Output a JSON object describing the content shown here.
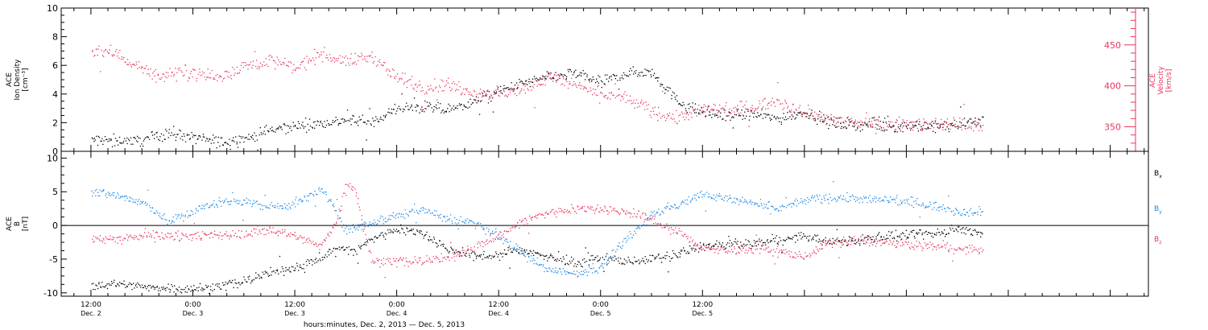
{
  "chart_data": [
    {
      "type": "scatter",
      "panel": "ion-density-velocity",
      "ylabel_lines": [
        "ACE",
        "Ion Density",
        "[cm⁻³]"
      ],
      "ylim": [
        0,
        10
      ],
      "yticks": [
        "0",
        "2",
        "4",
        "6",
        "8",
        "10"
      ],
      "y2label_lines": [
        "ACE",
        "Velocity",
        "[km/s]"
      ],
      "y2lim": [
        320,
        495
      ],
      "y2ticks": [
        "350",
        "400",
        "450"
      ],
      "colors": {
        "density": "#000000",
        "velocity": "#e8365d"
      },
      "series": [
        {
          "name": "",
          "color": "#000000",
          "axis": "left",
          "x_hours": [
            0,
            3,
            6,
            7,
            9,
            12,
            15,
            18,
            21,
            24,
            27,
            30,
            33,
            36,
            39,
            42,
            45,
            48,
            51,
            54,
            57,
            60,
            63,
            66,
            69,
            72,
            75,
            78,
            81,
            84,
            87,
            90,
            93,
            96,
            99,
            102,
            105
          ],
          "values": [
            0.8,
            0.8,
            0.8,
            1.0,
            1.3,
            1.0,
            0.7,
            0.9,
            1.5,
            1.8,
            2.0,
            2.2,
            2.0,
            3.0,
            3.1,
            2.9,
            3.5,
            4.2,
            4.8,
            5.2,
            5.5,
            4.8,
            5.5,
            5.6,
            3.5,
            2.7,
            2.5,
            2.6,
            2.3,
            2.8,
            2.0,
            1.9,
            1.8,
            1.8,
            1.7,
            1.9,
            2.2
          ],
          "spread": 0.35
        },
        {
          "name": "",
          "color": "#e8365d",
          "axis": "right",
          "x_hours": [
            0,
            3,
            6,
            8,
            9,
            12,
            15,
            18,
            21,
            24,
            27,
            30,
            33,
            36,
            39,
            42,
            45,
            48,
            51,
            54,
            57,
            60,
            63,
            66,
            69,
            72,
            75,
            78,
            81,
            84,
            87,
            90,
            93,
            96,
            99,
            102,
            105
          ],
          "values": [
            445,
            440,
            420,
            412,
            415,
            418,
            410,
            425,
            432,
            422,
            440,
            430,
            437,
            410,
            398,
            402,
            392,
            390,
            397,
            412,
            400,
            390,
            385,
            370,
            360,
            372,
            370,
            375,
            382,
            368,
            360,
            355,
            352,
            356,
            352,
            355,
            350
          ],
          "spread": 7
        }
      ]
    },
    {
      "type": "scatter",
      "panel": "magnetic-field",
      "ylabel_lines": [
        "ACE",
        "B",
        "[nT]"
      ],
      "ylim": [
        -10.5,
        11
      ],
      "yticks": [
        "-10",
        "-5",
        "0",
        "5",
        "10"
      ],
      "zero_line": true,
      "colors": {
        "Bx": "#000000",
        "By": "#1e88e5",
        "Bz": "#e8365d"
      },
      "series": [
        {
          "name": "B",
          "sub": "x",
          "color": "#000000",
          "x_hours": [
            0,
            3,
            6,
            9,
            12,
            15,
            18,
            21,
            24,
            27,
            29,
            31,
            33,
            36,
            39,
            42,
            45,
            48,
            51,
            54,
            57,
            60,
            63,
            66,
            69,
            72,
            75,
            78,
            81,
            84,
            87,
            90,
            93,
            96,
            99,
            102,
            105
          ],
          "values": [
            -8.8,
            -8.6,
            -9.0,
            -9.2,
            -9.4,
            -9.0,
            -8.2,
            -7.0,
            -6.2,
            -4.8,
            -3.2,
            -3.8,
            -2.0,
            -0.4,
            -1.0,
            -3.5,
            -4.5,
            -4.3,
            -3.5,
            -4.8,
            -5.5,
            -4.8,
            -5.2,
            -5.0,
            -4.2,
            -3.0,
            -2.8,
            -2.6,
            -2.2,
            -1.5,
            -2.5,
            -2.2,
            -1.6,
            -1.5,
            -1.2,
            -0.5,
            -1.0
          ],
          "spread": 0.6
        },
        {
          "name": "B",
          "sub": "y",
          "color": "#1e88e5",
          "x_hours": [
            0,
            3,
            6,
            8,
            9,
            12,
            15,
            18,
            21,
            24,
            27,
            29,
            30,
            33,
            36,
            39,
            42,
            45,
            48,
            51,
            54,
            57,
            60,
            63,
            66,
            69,
            72,
            75,
            78,
            81,
            84,
            87,
            90,
            93,
            96,
            99,
            102,
            105
          ],
          "values": [
            5.0,
            4.6,
            3.4,
            1.8,
            0.5,
            2.2,
            3.5,
            3.7,
            2.8,
            3.2,
            5.5,
            2.0,
            -0.8,
            0.6,
            1.5,
            2.5,
            1.0,
            0.5,
            -1.5,
            -4.5,
            -6.5,
            -7.2,
            -6.0,
            -2.0,
            1.8,
            3.0,
            4.8,
            4.0,
            3.2,
            2.5,
            3.8,
            4.2,
            4.0,
            3.8,
            3.6,
            3.0,
            2.2,
            2.0
          ],
          "spread": 0.6
        },
        {
          "name": "B",
          "sub": "z",
          "color": "#e8365d",
          "x_hours": [
            0,
            3,
            6,
            9,
            12,
            15,
            18,
            21,
            24,
            27,
            29,
            30,
            31,
            33,
            36,
            39,
            42,
            45,
            48,
            51,
            54,
            57,
            60,
            63,
            66,
            69,
            72,
            75,
            78,
            81,
            84,
            87,
            90,
            93,
            96,
            99,
            102,
            105
          ],
          "values": [
            -1.8,
            -2.0,
            -1.6,
            -1.4,
            -1.4,
            -1.5,
            -1.2,
            -0.5,
            -1.5,
            -3.0,
            1.0,
            6.3,
            5.8,
            -5.2,
            -5.3,
            -5.2,
            -4.8,
            -3.2,
            -1.5,
            0.8,
            2.0,
            2.6,
            2.6,
            2.0,
            1.0,
            -1.0,
            -3.2,
            -3.8,
            -3.3,
            -3.8,
            -4.5,
            -2.5,
            -2.2,
            -2.4,
            -2.8,
            -3.0,
            -3.5,
            -3.5
          ],
          "spread": 0.6
        }
      ]
    }
  ],
  "x_axis": {
    "start_label_hour": 0,
    "xlim_hours": [
      -3.5,
      124.5
    ],
    "tick_labels": [
      {
        "time": "12:00",
        "day": "Dec. 2",
        "hour": 0
      },
      {
        "time": "0:00",
        "day": "Dec. 3",
        "hour": 12
      },
      {
        "time": "12:00",
        "day": "Dec. 3",
        "hour": 24
      },
      {
        "time": "0:00",
        "day": "Dec. 4",
        "hour": 36
      },
      {
        "time": "12:00",
        "day": "Dec. 4",
        "hour": 48
      },
      {
        "time": "0:00",
        "day": "Dec. 5",
        "hour": 60
      },
      {
        "time": "12:00",
        "day": "Dec. 5",
        "hour": 72
      }
    ],
    "title": "hours:minutes, Dec.  2, 2013 — Dec.  5, 2013"
  }
}
